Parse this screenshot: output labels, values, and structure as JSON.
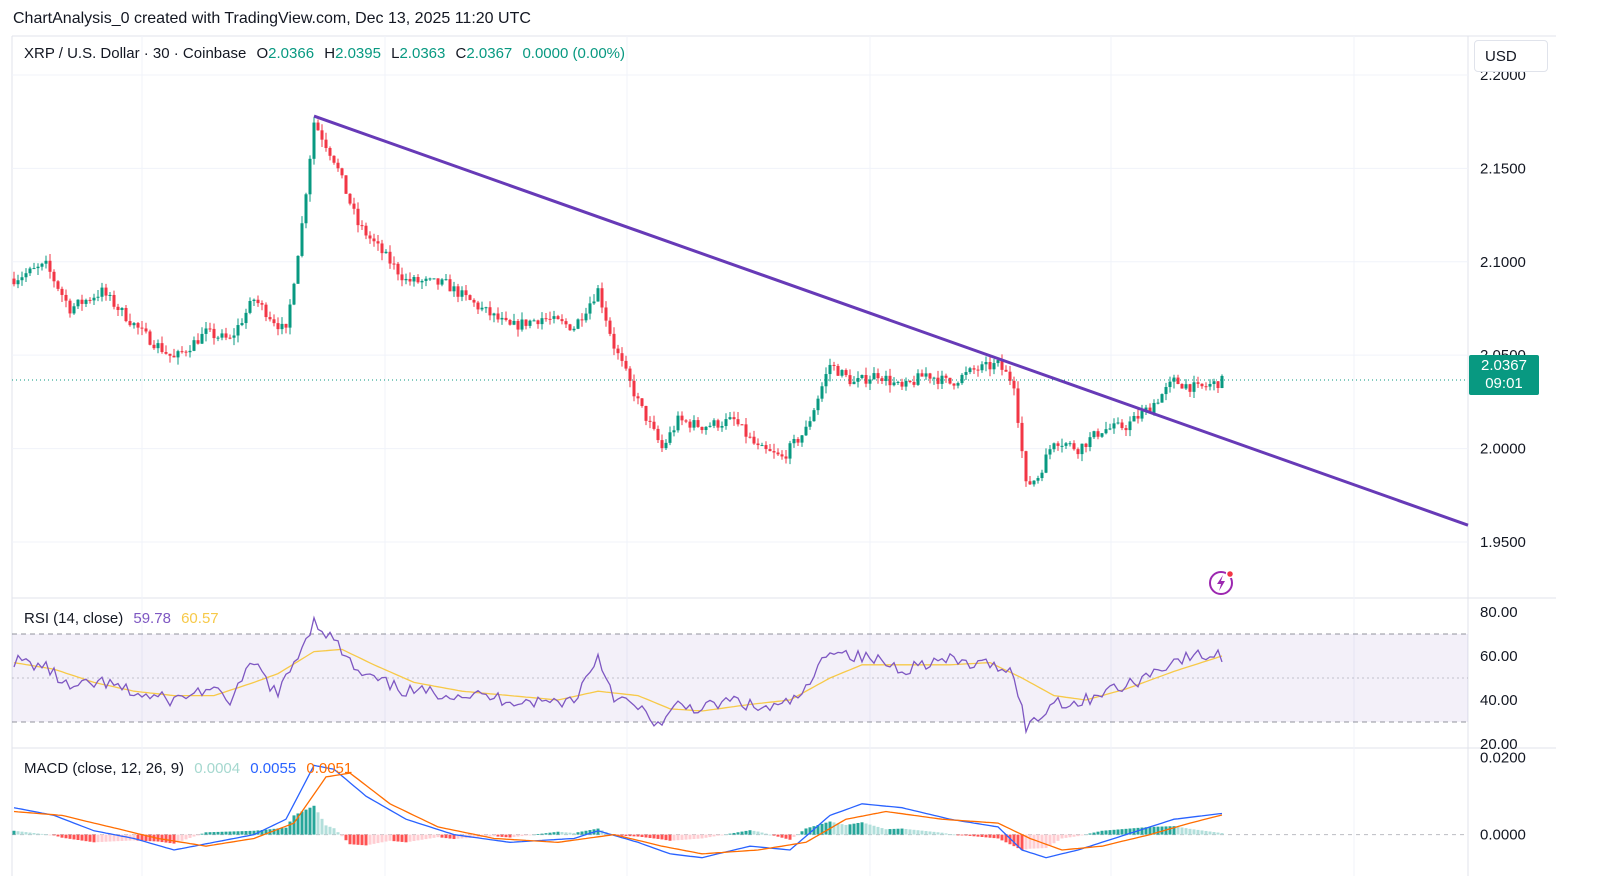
{
  "header_note": "ChartAnalysis_0 created with TradingView.com, Dec 13, 2025 11:20 UTC",
  "symbol": {
    "name": "XRP / U.S. Dollar · 30 · Coinbase",
    "o_label": "O",
    "o": "2.0366",
    "h_label": "H",
    "h": "2.0395",
    "l_label": "L",
    "l": "2.0363",
    "c_label": "C",
    "c": "2.0367",
    "change": "0.0000 (0.00%)"
  },
  "currency_button": "USD",
  "last_price": {
    "value": "2.0367",
    "countdown": "09:01",
    "color": "#089981"
  },
  "icons": {
    "alert": "lightning-icon"
  },
  "colors": {
    "up": "#089981",
    "down": "#f23645",
    "trendline": "#673ab7",
    "rsi": "#7e57c2",
    "rsi_ma": "#f7c948",
    "macd": "#2962ff",
    "signal": "#ff6d00"
  },
  "rsi_legend": {
    "label": "RSI (14, close)",
    "value": "59.78",
    "ma": "60.57"
  },
  "macd_legend": {
    "label": "MACD (close, 12, 26, 9)",
    "hist": "0.0004",
    "macd": "0.0055",
    "signal": "0.0051"
  },
  "chart_data": [
    {
      "type": "candlestick",
      "title": "XRP / U.S. Dollar · 30 · Coinbase",
      "ylim": [
        1.92,
        2.2
      ],
      "yticks": [
        "2.2000",
        "2.1500",
        "2.1000",
        "2.0500",
        "2.0000",
        "1.9500"
      ],
      "anchors": [
        [
          0,
          2.091
        ],
        [
          8,
          2.098
        ],
        [
          14,
          2.075
        ],
        [
          22,
          2.084
        ],
        [
          32,
          2.062
        ],
        [
          40,
          2.048
        ],
        [
          48,
          2.062
        ],
        [
          54,
          2.058
        ],
        [
          60,
          2.08
        ],
        [
          68,
          2.062
        ],
        [
          72,
          2.12
        ],
        [
          75,
          2.175
        ],
        [
          80,
          2.155
        ],
        [
          86,
          2.12
        ],
        [
          92,
          2.105
        ],
        [
          98,
          2.09
        ],
        [
          108,
          2.088
        ],
        [
          116,
          2.076
        ],
        [
          124,
          2.065
        ],
        [
          132,
          2.07
        ],
        [
          140,
          2.065
        ],
        [
          146,
          2.085
        ],
        [
          150,
          2.055
        ],
        [
          156,
          2.025
        ],
        [
          162,
          2.0
        ],
        [
          166,
          2.015
        ],
        [
          172,
          2.012
        ],
        [
          180,
          2.015
        ],
        [
          186,
          2.0
        ],
        [
          192,
          1.995
        ],
        [
          198,
          2.01
        ],
        [
          204,
          2.045
        ],
        [
          210,
          2.035
        ],
        [
          216,
          2.04
        ],
        [
          222,
          2.032
        ],
        [
          228,
          2.04
        ],
        [
          234,
          2.035
        ],
        [
          240,
          2.042
        ],
        [
          246,
          2.045
        ],
        [
          250,
          2.035
        ],
        [
          253,
          1.98
        ],
        [
          256,
          1.985
        ],
        [
          260,
          2.005
        ],
        [
          266,
          2.0
        ],
        [
          272,
          2.01
        ],
        [
          278,
          2.012
        ],
        [
          284,
          2.022
        ],
        [
          290,
          2.036
        ],
        [
          296,
          2.032
        ],
        [
          302,
          2.036
        ]
      ],
      "count": 303,
      "trendline": {
        "start": [
          75,
          2.178
        ],
        "end": [
          363,
          1.959
        ]
      },
      "last_price_line": 2.0367
    },
    {
      "type": "line",
      "title": "RSI (14, close)",
      "ylim": [
        20,
        80
      ],
      "yticks": [
        "80.00",
        "60.00",
        "40.00",
        "20.00"
      ],
      "bands": [
        30,
        50,
        70
      ],
      "series": [
        {
          "name": "RSI",
          "values_anchor": [
            [
              0,
              58
            ],
            [
              8,
              55
            ],
            [
              14,
              45
            ],
            [
              22,
              48
            ],
            [
              32,
              42
            ],
            [
              40,
              40
            ],
            [
              48,
              45
            ],
            [
              54,
              40
            ],
            [
              60,
              57
            ],
            [
              66,
              42
            ],
            [
              75,
              76
            ],
            [
              80,
              67
            ],
            [
              86,
              52
            ],
            [
              92,
              48
            ],
            [
              98,
              44
            ],
            [
              108,
              43
            ],
            [
              116,
              42
            ],
            [
              124,
              40
            ],
            [
              132,
              39
            ],
            [
              140,
              40
            ],
            [
              146,
              60
            ],
            [
              150,
              42
            ],
            [
              156,
              36
            ],
            [
              162,
              28
            ],
            [
              166,
              38
            ],
            [
              172,
              36
            ],
            [
              180,
              40
            ],
            [
              186,
              36
            ],
            [
              192,
              37
            ],
            [
              198,
              44
            ],
            [
              204,
              64
            ],
            [
              210,
              60
            ],
            [
              216,
              58
            ],
            [
              222,
              54
            ],
            [
              228,
              57
            ],
            [
              234,
              58
            ],
            [
              240,
              56
            ],
            [
              246,
              56
            ],
            [
              250,
              52
            ],
            [
              253,
              28
            ],
            [
              256,
              31
            ],
            [
              260,
              40
            ],
            [
              266,
              38
            ],
            [
              272,
              44
            ],
            [
              278,
              46
            ],
            [
              284,
              52
            ],
            [
              290,
              58
            ],
            [
              296,
              60
            ],
            [
              302,
              60
            ]
          ]
        },
        {
          "name": "RSI-based MA",
          "values_anchor": [
            [
              0,
              57
            ],
            [
              10,
              54
            ],
            [
              20,
              48
            ],
            [
              30,
              44
            ],
            [
              40,
              42
            ],
            [
              50,
              42
            ],
            [
              60,
              48
            ],
            [
              66,
              52
            ],
            [
              75,
              62
            ],
            [
              82,
              63
            ],
            [
              90,
              56
            ],
            [
              100,
              48
            ],
            [
              112,
              44
            ],
            [
              124,
              42
            ],
            [
              136,
              40
            ],
            [
              146,
              44
            ],
            [
              156,
              42
            ],
            [
              164,
              36
            ],
            [
              172,
              35
            ],
            [
              184,
              38
            ],
            [
              194,
              40
            ],
            [
              204,
              50
            ],
            [
              212,
              56
            ],
            [
              222,
              56
            ],
            [
              234,
              56
            ],
            [
              244,
              57
            ],
            [
              252,
              50
            ],
            [
              260,
              42
            ],
            [
              268,
              40
            ],
            [
              278,
              45
            ],
            [
              290,
              53
            ],
            [
              302,
              60
            ]
          ]
        }
      ]
    },
    {
      "type": "bar+line",
      "title": "MACD (close, 12, 26, 9)",
      "ylim": [
        -0.004,
        0.022
      ],
      "yticks": [
        "0.0200",
        "0.0000"
      ],
      "series": [
        {
          "name": "MACD",
          "values_anchor": [
            [
              0,
              0.007
            ],
            [
              10,
              0.005
            ],
            [
              20,
              0.001
            ],
            [
              30,
              -0.001
            ],
            [
              40,
              -0.004
            ],
            [
              50,
              -0.002
            ],
            [
              60,
              0.0
            ],
            [
              68,
              0.004
            ],
            [
              75,
              0.018
            ],
            [
              80,
              0.017
            ],
            [
              88,
              0.01
            ],
            [
              98,
              0.004
            ],
            [
              110,
              0.0
            ],
            [
              124,
              -0.002
            ],
            [
              140,
              -0.001
            ],
            [
              146,
              0.001
            ],
            [
              156,
              -0.002
            ],
            [
              164,
              -0.005
            ],
            [
              172,
              -0.006
            ],
            [
              184,
              -0.003
            ],
            [
              194,
              -0.004
            ],
            [
              204,
              0.005
            ],
            [
              212,
              0.008
            ],
            [
              222,
              0.007
            ],
            [
              234,
              0.004
            ],
            [
              246,
              0.002
            ],
            [
              252,
              -0.004
            ],
            [
              258,
              -0.006
            ],
            [
              266,
              -0.004
            ],
            [
              278,
              0.0
            ],
            [
              290,
              0.004
            ],
            [
              302,
              0.0055
            ]
          ]
        },
        {
          "name": "Signal",
          "values_anchor": [
            [
              0,
              0.006
            ],
            [
              12,
              0.005
            ],
            [
              24,
              0.002
            ],
            [
              36,
              -0.001
            ],
            [
              48,
              -0.003
            ],
            [
              60,
              -0.001
            ],
            [
              70,
              0.003
            ],
            [
              78,
              0.015
            ],
            [
              84,
              0.016
            ],
            [
              94,
              0.008
            ],
            [
              106,
              0.002
            ],
            [
              120,
              -0.001
            ],
            [
              136,
              -0.002
            ],
            [
              150,
              0.0
            ],
            [
              162,
              -0.003
            ],
            [
              172,
              -0.005
            ],
            [
              186,
              -0.004
            ],
            [
              198,
              -0.002
            ],
            [
              208,
              0.004
            ],
            [
              218,
              0.006
            ],
            [
              232,
              0.004
            ],
            [
              246,
              0.003
            ],
            [
              254,
              -0.001
            ],
            [
              262,
              -0.004
            ],
            [
              272,
              -0.003
            ],
            [
              284,
              0.0
            ],
            [
              294,
              0.003
            ],
            [
              302,
              0.0051
            ]
          ]
        }
      ]
    }
  ]
}
